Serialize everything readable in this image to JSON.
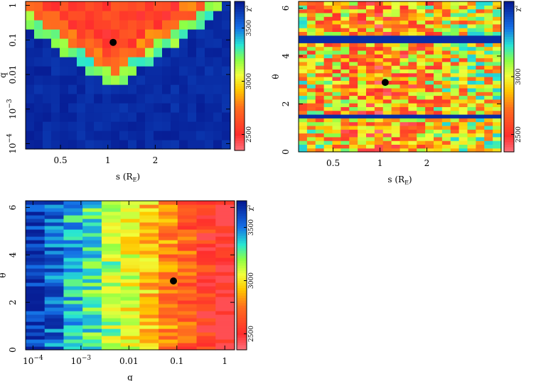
{
  "chart_data": [
    {
      "type": "heatmap",
      "panel": "top-left",
      "xlabel": "s (R",
      "xlabel_sub": "E",
      "xlabel_close": ")",
      "ylabel": "q",
      "x_scale": "log",
      "y_scale": "log",
      "xlim": [
        0.3,
        6.0
      ],
      "ylim": [
        7e-05,
        1.3
      ],
      "x_ticks": [
        {
          "v": 0.5,
          "label": "0.5"
        },
        {
          "v": 1,
          "label": "1"
        },
        {
          "v": 2,
          "label": "2"
        }
      ],
      "y_ticks": [
        {
          "v": 1,
          "label": "1"
        },
        {
          "v": 0.1,
          "label": "0.1"
        },
        {
          "v": 0.01,
          "label": "0.01"
        },
        {
          "v": 0.001,
          "label": "10",
          "sup": "−3"
        },
        {
          "v": 0.0001,
          "label": "10",
          "sup": "−4"
        }
      ],
      "best_fit": {
        "x": 1.08,
        "y": 0.085
      },
      "colorbar": {
        "label": "χ²",
        "ticks": [
          2500,
          3000,
          3500
        ],
        "min": 2350,
        "max": 3750
      }
    },
    {
      "type": "heatmap",
      "panel": "top-right",
      "xlabel": "s (R",
      "xlabel_sub": "E",
      "xlabel_close": ")",
      "ylabel": "θ",
      "x_scale": "log",
      "y_scale": "linear",
      "xlim": [
        0.3,
        6.0
      ],
      "ylim": [
        0,
        6.28
      ],
      "x_ticks": [
        {
          "v": 0.5,
          "label": "0.5"
        },
        {
          "v": 1,
          "label": "1"
        },
        {
          "v": 2,
          "label": "2"
        }
      ],
      "y_ticks": [
        {
          "v": 0,
          "label": "0"
        },
        {
          "v": 2,
          "label": "2"
        },
        {
          "v": 4,
          "label": "4"
        },
        {
          "v": 6,
          "label": "6"
        }
      ],
      "best_fit": {
        "x": 1.08,
        "y": 2.9
      },
      "colorbar": {
        "label": "χ²",
        "ticks": [
          2500,
          3000
        ],
        "min": 2350,
        "max": 3650
      }
    },
    {
      "type": "heatmap",
      "panel": "bottom-left",
      "xlabel": "q",
      "ylabel": "θ",
      "x_scale": "log",
      "y_scale": "linear",
      "xlim": [
        7e-05,
        1.6
      ],
      "ylim": [
        0,
        6.28
      ],
      "x_ticks": [
        {
          "v": 0.0001,
          "label": "10",
          "sup": "−4"
        },
        {
          "v": 0.001,
          "label": "10",
          "sup": "−3"
        },
        {
          "v": 0.01,
          "label": "0.01"
        },
        {
          "v": 0.1,
          "label": "0.1"
        },
        {
          "v": 1,
          "label": "1"
        }
      ],
      "y_ticks": [
        {
          "v": 0,
          "label": "0"
        },
        {
          "v": 2,
          "label": "2"
        },
        {
          "v": 4,
          "label": "4"
        },
        {
          "v": 6,
          "label": "6"
        }
      ],
      "best_fit": {
        "x": 0.085,
        "y": 2.9
      },
      "colorbar": {
        "label": "χ²",
        "ticks": [
          2500,
          3000,
          3500
        ],
        "min": 2350,
        "max": 3750
      }
    }
  ]
}
